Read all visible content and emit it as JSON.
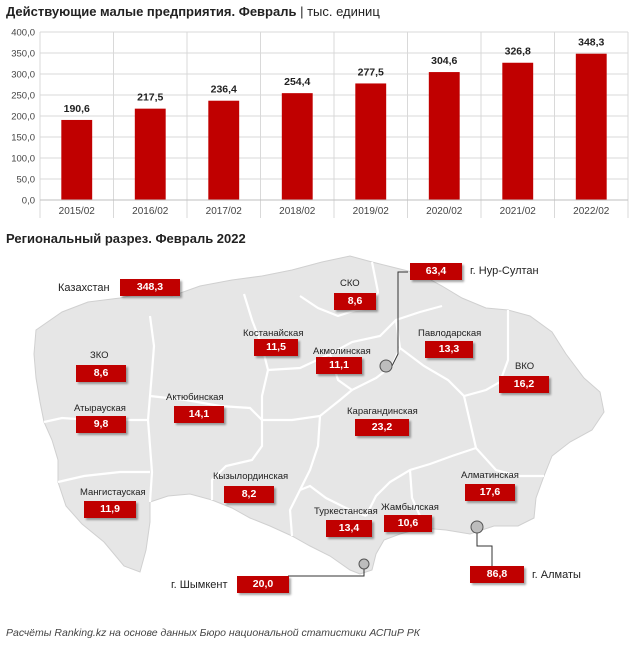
{
  "header": {
    "title_bold": "Действующие малые предприятия. Февраль",
    "title_rest": " | тыс. единиц"
  },
  "colors": {
    "bar": "#c00000",
    "map_fill": "#e6e6e6",
    "map_border": "#ffffff"
  },
  "chart_data": {
    "type": "bar",
    "categories": [
      "2015/02",
      "2016/02",
      "2017/02",
      "2018/02",
      "2019/02",
      "2020/02",
      "2021/02",
      "2022/02"
    ],
    "values": [
      190.6,
      217.5,
      236.4,
      254.4,
      277.5,
      304.6,
      326.8,
      348.3
    ],
    "value_labels": [
      "190,6",
      "217,5",
      "236,4",
      "254,4",
      "277,5",
      "304,6",
      "326,8",
      "348,3"
    ],
    "yticks": [
      "0,0",
      "50,0",
      "100,0",
      "150,0",
      "200,0",
      "250,0",
      "300,0",
      "350,0",
      "400,0"
    ],
    "ylim": [
      0,
      400
    ],
    "grid": true
  },
  "regional": {
    "title": "Региональный разрез. Февраль 2022",
    "kazakhstan": {
      "name": "Казахстан",
      "value": "348,3"
    },
    "regions": [
      {
        "id": "sko",
        "name": "СКО",
        "value": "8,6"
      },
      {
        "id": "kostanay",
        "name": "Костанайская",
        "value": "11,5"
      },
      {
        "id": "akmola",
        "name": "Акмолинская",
        "value": "11,1"
      },
      {
        "id": "pavlodar",
        "name": "Павлодарская",
        "value": "13,3"
      },
      {
        "id": "zko",
        "name": "ЗКО",
        "value": "8,6"
      },
      {
        "id": "vko",
        "name": "ВКО",
        "value": "16,2"
      },
      {
        "id": "atyrau",
        "name": "Атырауская",
        "value": "9,8"
      },
      {
        "id": "aktobe",
        "name": "Актюбинская",
        "value": "14,1"
      },
      {
        "id": "karaganda",
        "name": "Карагандинская",
        "value": "23,2"
      },
      {
        "id": "kyzylorda",
        "name": "Кызылординская",
        "value": "8,2"
      },
      {
        "id": "mangystau",
        "name": "Мангистауская",
        "value": "11,9"
      },
      {
        "id": "almaty-region",
        "name": "Алматинская",
        "value": "17,6"
      },
      {
        "id": "turkestan",
        "name": "Туркестанская",
        "value": "13,4"
      },
      {
        "id": "zhambyl",
        "name": "Жамбылская",
        "value": "10,6"
      }
    ],
    "cities": [
      {
        "id": "nur-sultan",
        "name": "г. Нур-Султан",
        "value": "63,4"
      },
      {
        "id": "shymkent",
        "name": "г. Шымкент",
        "value": "20,0"
      },
      {
        "id": "almaty",
        "name": "г. Алматы",
        "value": "86,8"
      }
    ]
  },
  "footer": {
    "source": "Расчёты Ranking.kz на основе данных Бюро национальной статистики АСПиР РК"
  }
}
